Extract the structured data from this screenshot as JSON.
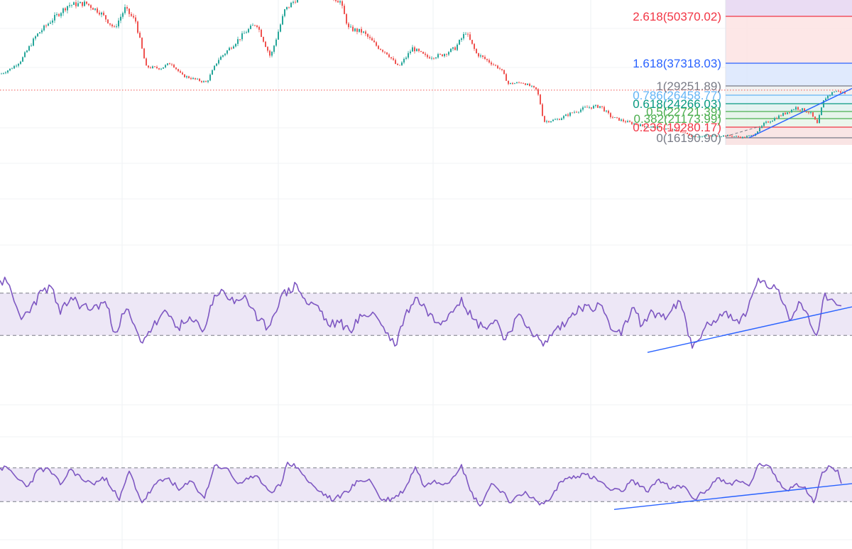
{
  "chart_data": [
    {
      "type": "candlestick",
      "panel": "price",
      "y_scale": "linear",
      "ylim": [
        14800,
        52000
      ],
      "last_price": 28000,
      "colors": {
        "up": "#26a69a",
        "down": "#ef5350",
        "last_price_line": "#ef5350"
      },
      "trendline": {
        "from": {
          "t": 1055,
          "price": 16200
        },
        "to": {
          "t": 1200,
          "price": 28500
        },
        "color": "#2962ff"
      },
      "fib_retracement": {
        "levels": [
          {
            "ratio": "0",
            "price": "16190.90",
            "color": "#787b86",
            "fill": "#f8e1e1"
          },
          {
            "ratio": "0.236",
            "price": "19280.17",
            "color": "#f23645",
            "fill": "#e8f5e9"
          },
          {
            "ratio": "0.382",
            "price": "21173.99",
            "color": "#4caf50",
            "fill": "#e3f2e6"
          },
          {
            "ratio": "0.5",
            "price": "22721.39",
            "color": "#4caf50",
            "fill": "#dff1ef"
          },
          {
            "ratio": "0.618",
            "price": "24266.03",
            "color": "#089981",
            "fill": "#e1f1fb"
          },
          {
            "ratio": "0.786",
            "price": "26458.77",
            "color": "#64b5f6",
            "fill": "#eeeeee"
          },
          {
            "ratio": "1",
            "price": "29251.89",
            "color": "#787b86",
            "fill": "#dbe6fd"
          },
          {
            "ratio": "1.618",
            "price": "37318.03",
            "color": "#2962ff",
            "fill": "#fde3e3"
          },
          {
            "ratio": "2.618",
            "price": "50370.02",
            "color": "#f23645",
            "fill": "#eadcf3"
          }
        ]
      },
      "label_series": [
        {
          "t": 0,
          "price": 33500
        },
        {
          "t": 15,
          "price": 35500
        },
        {
          "t": 30,
          "price": 38500
        },
        {
          "t": 50,
          "price": 45000
        },
        {
          "t": 70,
          "price": 49000
        },
        {
          "t": 95,
          "price": 53500
        },
        {
          "t": 120,
          "price": 54000
        },
        {
          "t": 140,
          "price": 51500
        },
        {
          "t": 160,
          "price": 47000
        },
        {
          "t": 175,
          "price": 52500
        },
        {
          "t": 190,
          "price": 49000
        },
        {
          "t": 205,
          "price": 36000
        },
        {
          "t": 225,
          "price": 35500
        },
        {
          "t": 240,
          "price": 37500
        },
        {
          "t": 255,
          "price": 33000
        },
        {
          "t": 275,
          "price": 31500
        },
        {
          "t": 290,
          "price": 30500
        },
        {
          "t": 305,
          "price": 38000
        },
        {
          "t": 325,
          "price": 42000
        },
        {
          "t": 345,
          "price": 46000
        },
        {
          "t": 360,
          "price": 48500
        },
        {
          "t": 380,
          "price": 39000
        },
        {
          "t": 400,
          "price": 52000
        },
        {
          "t": 420,
          "price": 56000
        },
        {
          "t": 450,
          "price": 58000
        },
        {
          "t": 478,
          "price": 54500
        },
        {
          "t": 490,
          "price": 47000
        },
        {
          "t": 510,
          "price": 46000
        },
        {
          "t": 530,
          "price": 42000
        },
        {
          "t": 545,
          "price": 40000
        },
        {
          "t": 560,
          "price": 36000
        },
        {
          "t": 580,
          "price": 41500
        },
        {
          "t": 600,
          "price": 39000
        },
        {
          "t": 620,
          "price": 39500
        },
        {
          "t": 640,
          "price": 41500
        },
        {
          "t": 655,
          "price": 46000
        },
        {
          "t": 670,
          "price": 40000
        },
        {
          "t": 690,
          "price": 37500
        },
        {
          "t": 705,
          "price": 35000
        },
        {
          "t": 715,
          "price": 30000
        },
        {
          "t": 735,
          "price": 30500
        },
        {
          "t": 755,
          "price": 28000
        },
        {
          "t": 765,
          "price": 20500
        },
        {
          "t": 785,
          "price": 21000
        },
        {
          "t": 805,
          "price": 22500
        },
        {
          "t": 825,
          "price": 23500
        },
        {
          "t": 845,
          "price": 23800
        },
        {
          "t": 860,
          "price": 21500
        },
        {
          "t": 880,
          "price": 20500
        },
        {
          "t": 905,
          "price": 19500
        },
        {
          "t": 930,
          "price": 19000
        },
        {
          "t": 955,
          "price": 18200
        },
        {
          "t": 975,
          "price": 16600
        },
        {
          "t": 1000,
          "price": 16700
        },
        {
          "t": 1025,
          "price": 16800
        },
        {
          "t": 1045,
          "price": 16300
        },
        {
          "t": 1060,
          "price": 17000
        },
        {
          "t": 1075,
          "price": 20000
        },
        {
          "t": 1100,
          "price": 22000
        },
        {
          "t": 1120,
          "price": 23500
        },
        {
          "t": 1140,
          "price": 22500
        },
        {
          "t": 1150,
          "price": 20000
        },
        {
          "t": 1160,
          "price": 25500
        },
        {
          "t": 1175,
          "price": 27800
        },
        {
          "t": 1190,
          "price": 27000
        }
      ]
    },
    {
      "type": "line",
      "panel": "oscillator-1",
      "ylim": [
        0,
        100
      ],
      "band": [
        30,
        70
      ],
      "color": "#7e57c2",
      "band_fill": "#ede7f6",
      "trendline": {
        "from": {
          "t": 912,
          "value": 14
        },
        "to": {
          "t": 1200,
          "value": 57
        },
        "color": "#2962ff"
      },
      "series": [
        {
          "t": 0,
          "value": 82
        },
        {
          "t": 10,
          "value": 80
        },
        {
          "t": 20,
          "value": 62
        },
        {
          "t": 30,
          "value": 45
        },
        {
          "t": 45,
          "value": 58
        },
        {
          "t": 60,
          "value": 72
        },
        {
          "t": 72,
          "value": 76
        },
        {
          "t": 85,
          "value": 50
        },
        {
          "t": 100,
          "value": 66
        },
        {
          "t": 115,
          "value": 58
        },
        {
          "t": 130,
          "value": 55
        },
        {
          "t": 148,
          "value": 62
        },
        {
          "t": 162,
          "value": 33
        },
        {
          "t": 178,
          "value": 55
        },
        {
          "t": 198,
          "value": 24
        },
        {
          "t": 215,
          "value": 38
        },
        {
          "t": 235,
          "value": 52
        },
        {
          "t": 250,
          "value": 38
        },
        {
          "t": 270,
          "value": 44
        },
        {
          "t": 288,
          "value": 36
        },
        {
          "t": 302,
          "value": 68
        },
        {
          "t": 315,
          "value": 72
        },
        {
          "t": 330,
          "value": 60
        },
        {
          "t": 345,
          "value": 68
        },
        {
          "t": 362,
          "value": 44
        },
        {
          "t": 378,
          "value": 38
        },
        {
          "t": 395,
          "value": 66
        },
        {
          "t": 418,
          "value": 78
        },
        {
          "t": 432,
          "value": 60
        },
        {
          "t": 448,
          "value": 58
        },
        {
          "t": 462,
          "value": 40
        },
        {
          "t": 478,
          "value": 42
        },
        {
          "t": 492,
          "value": 35
        },
        {
          "t": 510,
          "value": 48
        },
        {
          "t": 525,
          "value": 52
        },
        {
          "t": 540,
          "value": 38
        },
        {
          "t": 556,
          "value": 20
        },
        {
          "t": 570,
          "value": 48
        },
        {
          "t": 585,
          "value": 66
        },
        {
          "t": 600,
          "value": 55
        },
        {
          "t": 615,
          "value": 42
        },
        {
          "t": 632,
          "value": 50
        },
        {
          "t": 650,
          "value": 66
        },
        {
          "t": 665,
          "value": 46
        },
        {
          "t": 680,
          "value": 38
        },
        {
          "t": 700,
          "value": 44
        },
        {
          "t": 712,
          "value": 26
        },
        {
          "t": 728,
          "value": 48
        },
        {
          "t": 745,
          "value": 38
        },
        {
          "t": 765,
          "value": 20
        },
        {
          "t": 780,
          "value": 34
        },
        {
          "t": 798,
          "value": 42
        },
        {
          "t": 815,
          "value": 58
        },
        {
          "t": 832,
          "value": 55
        },
        {
          "t": 848,
          "value": 58
        },
        {
          "t": 860,
          "value": 36
        },
        {
          "t": 875,
          "value": 30
        },
        {
          "t": 890,
          "value": 56
        },
        {
          "t": 905,
          "value": 40
        },
        {
          "t": 920,
          "value": 52
        },
        {
          "t": 940,
          "value": 48
        },
        {
          "t": 958,
          "value": 62
        },
        {
          "t": 975,
          "value": 18
        },
        {
          "t": 990,
          "value": 34
        },
        {
          "t": 1005,
          "value": 44
        },
        {
          "t": 1020,
          "value": 52
        },
        {
          "t": 1035,
          "value": 44
        },
        {
          "t": 1050,
          "value": 48
        },
        {
          "t": 1068,
          "value": 84
        },
        {
          "t": 1080,
          "value": 76
        },
        {
          "t": 1090,
          "value": 78
        },
        {
          "t": 1100,
          "value": 64
        },
        {
          "t": 1112,
          "value": 44
        },
        {
          "t": 1125,
          "value": 62
        },
        {
          "t": 1138,
          "value": 50
        },
        {
          "t": 1150,
          "value": 30
        },
        {
          "t": 1162,
          "value": 70
        },
        {
          "t": 1175,
          "value": 62
        },
        {
          "t": 1185,
          "value": 58
        }
      ]
    },
    {
      "type": "line",
      "panel": "oscillator-2",
      "ylim": [
        0,
        100
      ],
      "band": [
        20,
        80
      ],
      "color": "#7e57c2",
      "band_fill": "#ede7f6",
      "trendline": {
        "from": {
          "t": 865,
          "value": 6
        },
        "to": {
          "t": 1200,
          "value": 52
        },
        "color": "#2962ff"
      },
      "series": [
        {
          "t": 0,
          "value": 80
        },
        {
          "t": 12,
          "value": 78
        },
        {
          "t": 25,
          "value": 60
        },
        {
          "t": 40,
          "value": 48
        },
        {
          "t": 55,
          "value": 78
        },
        {
          "t": 70,
          "value": 76
        },
        {
          "t": 85,
          "value": 50
        },
        {
          "t": 100,
          "value": 78
        },
        {
          "t": 115,
          "value": 60
        },
        {
          "t": 130,
          "value": 52
        },
        {
          "t": 150,
          "value": 62
        },
        {
          "t": 168,
          "value": 22
        },
        {
          "t": 182,
          "value": 74
        },
        {
          "t": 200,
          "value": 18
        },
        {
          "t": 220,
          "value": 52
        },
        {
          "t": 238,
          "value": 62
        },
        {
          "t": 252,
          "value": 40
        },
        {
          "t": 270,
          "value": 56
        },
        {
          "t": 288,
          "value": 26
        },
        {
          "t": 302,
          "value": 84
        },
        {
          "t": 318,
          "value": 80
        },
        {
          "t": 335,
          "value": 52
        },
        {
          "t": 350,
          "value": 60
        },
        {
          "t": 365,
          "value": 62
        },
        {
          "t": 380,
          "value": 38
        },
        {
          "t": 395,
          "value": 48
        },
        {
          "t": 405,
          "value": 90
        },
        {
          "t": 420,
          "value": 80
        },
        {
          "t": 435,
          "value": 54
        },
        {
          "t": 450,
          "value": 38
        },
        {
          "t": 470,
          "value": 22
        },
        {
          "t": 488,
          "value": 38
        },
        {
          "t": 505,
          "value": 56
        },
        {
          "t": 520,
          "value": 60
        },
        {
          "t": 538,
          "value": 22
        },
        {
          "t": 555,
          "value": 26
        },
        {
          "t": 570,
          "value": 42
        },
        {
          "t": 585,
          "value": 82
        },
        {
          "t": 598,
          "value": 46
        },
        {
          "t": 612,
          "value": 58
        },
        {
          "t": 630,
          "value": 52
        },
        {
          "t": 650,
          "value": 86
        },
        {
          "t": 662,
          "value": 40
        },
        {
          "t": 676,
          "value": 12
        },
        {
          "t": 692,
          "value": 52
        },
        {
          "t": 708,
          "value": 38
        },
        {
          "t": 720,
          "value": 18
        },
        {
          "t": 740,
          "value": 38
        },
        {
          "t": 760,
          "value": 14
        },
        {
          "t": 775,
          "value": 24
        },
        {
          "t": 790,
          "value": 56
        },
        {
          "t": 808,
          "value": 66
        },
        {
          "t": 825,
          "value": 68
        },
        {
          "t": 845,
          "value": 56
        },
        {
          "t": 860,
          "value": 40
        },
        {
          "t": 875,
          "value": 38
        },
        {
          "t": 892,
          "value": 58
        },
        {
          "t": 910,
          "value": 38
        },
        {
          "t": 928,
          "value": 60
        },
        {
          "t": 945,
          "value": 42
        },
        {
          "t": 962,
          "value": 48
        },
        {
          "t": 978,
          "value": 24
        },
        {
          "t": 995,
          "value": 40
        },
        {
          "t": 1010,
          "value": 62
        },
        {
          "t": 1025,
          "value": 52
        },
        {
          "t": 1040,
          "value": 56
        },
        {
          "t": 1055,
          "value": 48
        },
        {
          "t": 1070,
          "value": 88
        },
        {
          "t": 1082,
          "value": 84
        },
        {
          "t": 1095,
          "value": 56
        },
        {
          "t": 1108,
          "value": 40
        },
        {
          "t": 1122,
          "value": 52
        },
        {
          "t": 1134,
          "value": 46
        },
        {
          "t": 1146,
          "value": 18
        },
        {
          "t": 1158,
          "value": 72
        },
        {
          "t": 1170,
          "value": 82
        },
        {
          "t": 1180,
          "value": 76
        },
        {
          "t": 1185,
          "value": 52
        }
      ]
    }
  ]
}
